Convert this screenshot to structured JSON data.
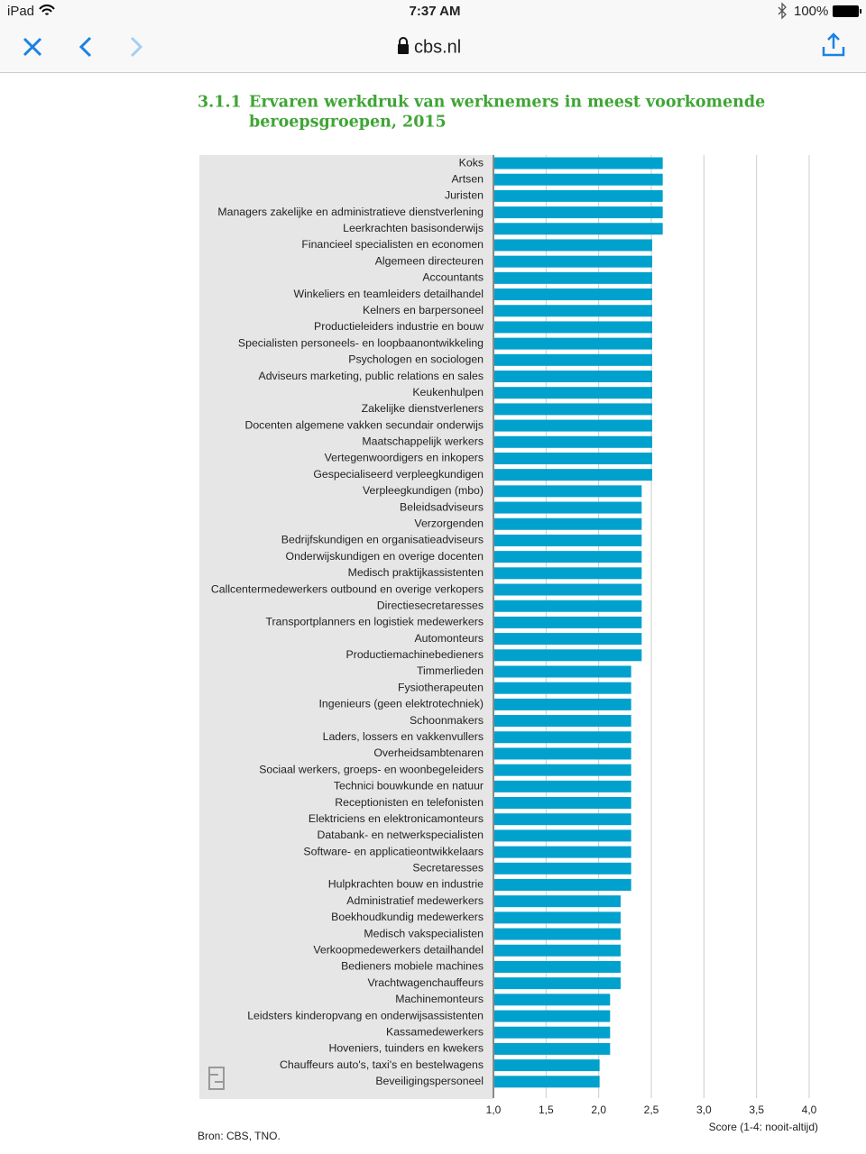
{
  "status_bar": {
    "device": "iPad",
    "time": "7:37 AM",
    "battery": "100%"
  },
  "browser": {
    "url": "cbs.nl"
  },
  "chart_data": {
    "type": "bar",
    "orientation": "horizontal",
    "title_number": "3.1.1",
    "title_lines": [
      "Ervaren werkdruk van werknemers in meest voorkomende",
      "beroepsgroepen, 2015"
    ],
    "categories": [
      "Koks",
      "Artsen",
      "Juristen",
      "Managers zakelijke en administratieve dienstverlening",
      "Leerkrachten basisonderwijs",
      "Financieel specialisten en economen",
      "Algemeen directeuren",
      "Accountants",
      "Winkeliers en teamleiders detailhandel",
      "Kelners en barpersoneel",
      "Productieleiders industrie en bouw",
      "Specialisten personeels- en loopbaanontwikkeling",
      "Psychologen en sociologen",
      "Adviseurs marketing, public relations en sales",
      "Keukenhulpen",
      "Zakelijke dienstverleners",
      "Docenten algemene vakken secundair onderwijs",
      "Maatschappelijk werkers",
      "Vertegenwoordigers en inkopers",
      "Gespecialiseerd verpleegkundigen",
      "Verpleegkundigen (mbo)",
      "Beleidsadviseurs",
      "Verzorgenden",
      "Bedrijfskundigen en organisatieadviseurs",
      "Onderwijskundigen en overige docenten",
      "Medisch praktijkassistenten",
      "Callcentermedewerkers outbound en overige verkopers",
      "Directiesecretaresses",
      "Transportplanners en logistiek medewerkers",
      "Automonteurs",
      "Productiemachinebedieners",
      "Timmerlieden",
      "Fysiotherapeuten",
      "Ingenieurs (geen elektrotechniek)",
      "Schoonmakers",
      "Laders, lossers en vakkenvullers",
      "Overheidsambtenaren",
      "Sociaal werkers, groeps- en woonbegeleiders",
      "Technici bouwkunde en natuur",
      "Receptionisten en telefonisten",
      "Elektriciens en elektronicamonteurs",
      "Databank- en netwerkspecialisten",
      "Software- en applicatieontwikkelaars",
      "Secretaresses",
      "Hulpkrachten bouw en industrie",
      "Administratief medewerkers",
      "Boekhoudkundig medewerkers",
      "Medisch vakspecialisten",
      "Verkoopmedewerkers detailhandel",
      "Bedieners mobiele machines",
      "Vrachtwagenchauffeurs",
      "Machinemonteurs",
      "Leidsters kinderopvang en onderwijsassistenten",
      "Kassamedewerkers",
      "Hoveniers, tuinders en kwekers",
      "Chauffeurs auto's, taxi's en bestelwagens",
      "Beveiligingspersoneel"
    ],
    "values": [
      2.6,
      2.6,
      2.6,
      2.6,
      2.6,
      2.5,
      2.5,
      2.5,
      2.5,
      2.5,
      2.5,
      2.5,
      2.5,
      2.5,
      2.5,
      2.5,
      2.5,
      2.5,
      2.5,
      2.5,
      2.4,
      2.4,
      2.4,
      2.4,
      2.4,
      2.4,
      2.4,
      2.4,
      2.4,
      2.4,
      2.4,
      2.3,
      2.3,
      2.3,
      2.3,
      2.3,
      2.3,
      2.3,
      2.3,
      2.3,
      2.3,
      2.3,
      2.3,
      2.3,
      2.3,
      2.2,
      2.2,
      2.2,
      2.2,
      2.2,
      2.2,
      2.1,
      2.1,
      2.1,
      2.1,
      2.0,
      2.0
    ],
    "color": "#00a1cd",
    "xlim": [
      1,
      4
    ],
    "xticks": [
      {
        "value": 1,
        "label": "1,0"
      },
      {
        "value": 1.5,
        "label": "1,5"
      },
      {
        "value": 2,
        "label": "2,0"
      },
      {
        "value": 2.5,
        "label": "2,5"
      },
      {
        "value": 3,
        "label": "3,0"
      },
      {
        "value": 3.5,
        "label": "3,5"
      },
      {
        "value": 4,
        "label": "4,0"
      }
    ],
    "xlabel": "Score (1-4: nooit-altijd)",
    "grid": true
  },
  "source": "Bron: CBS, TNO."
}
